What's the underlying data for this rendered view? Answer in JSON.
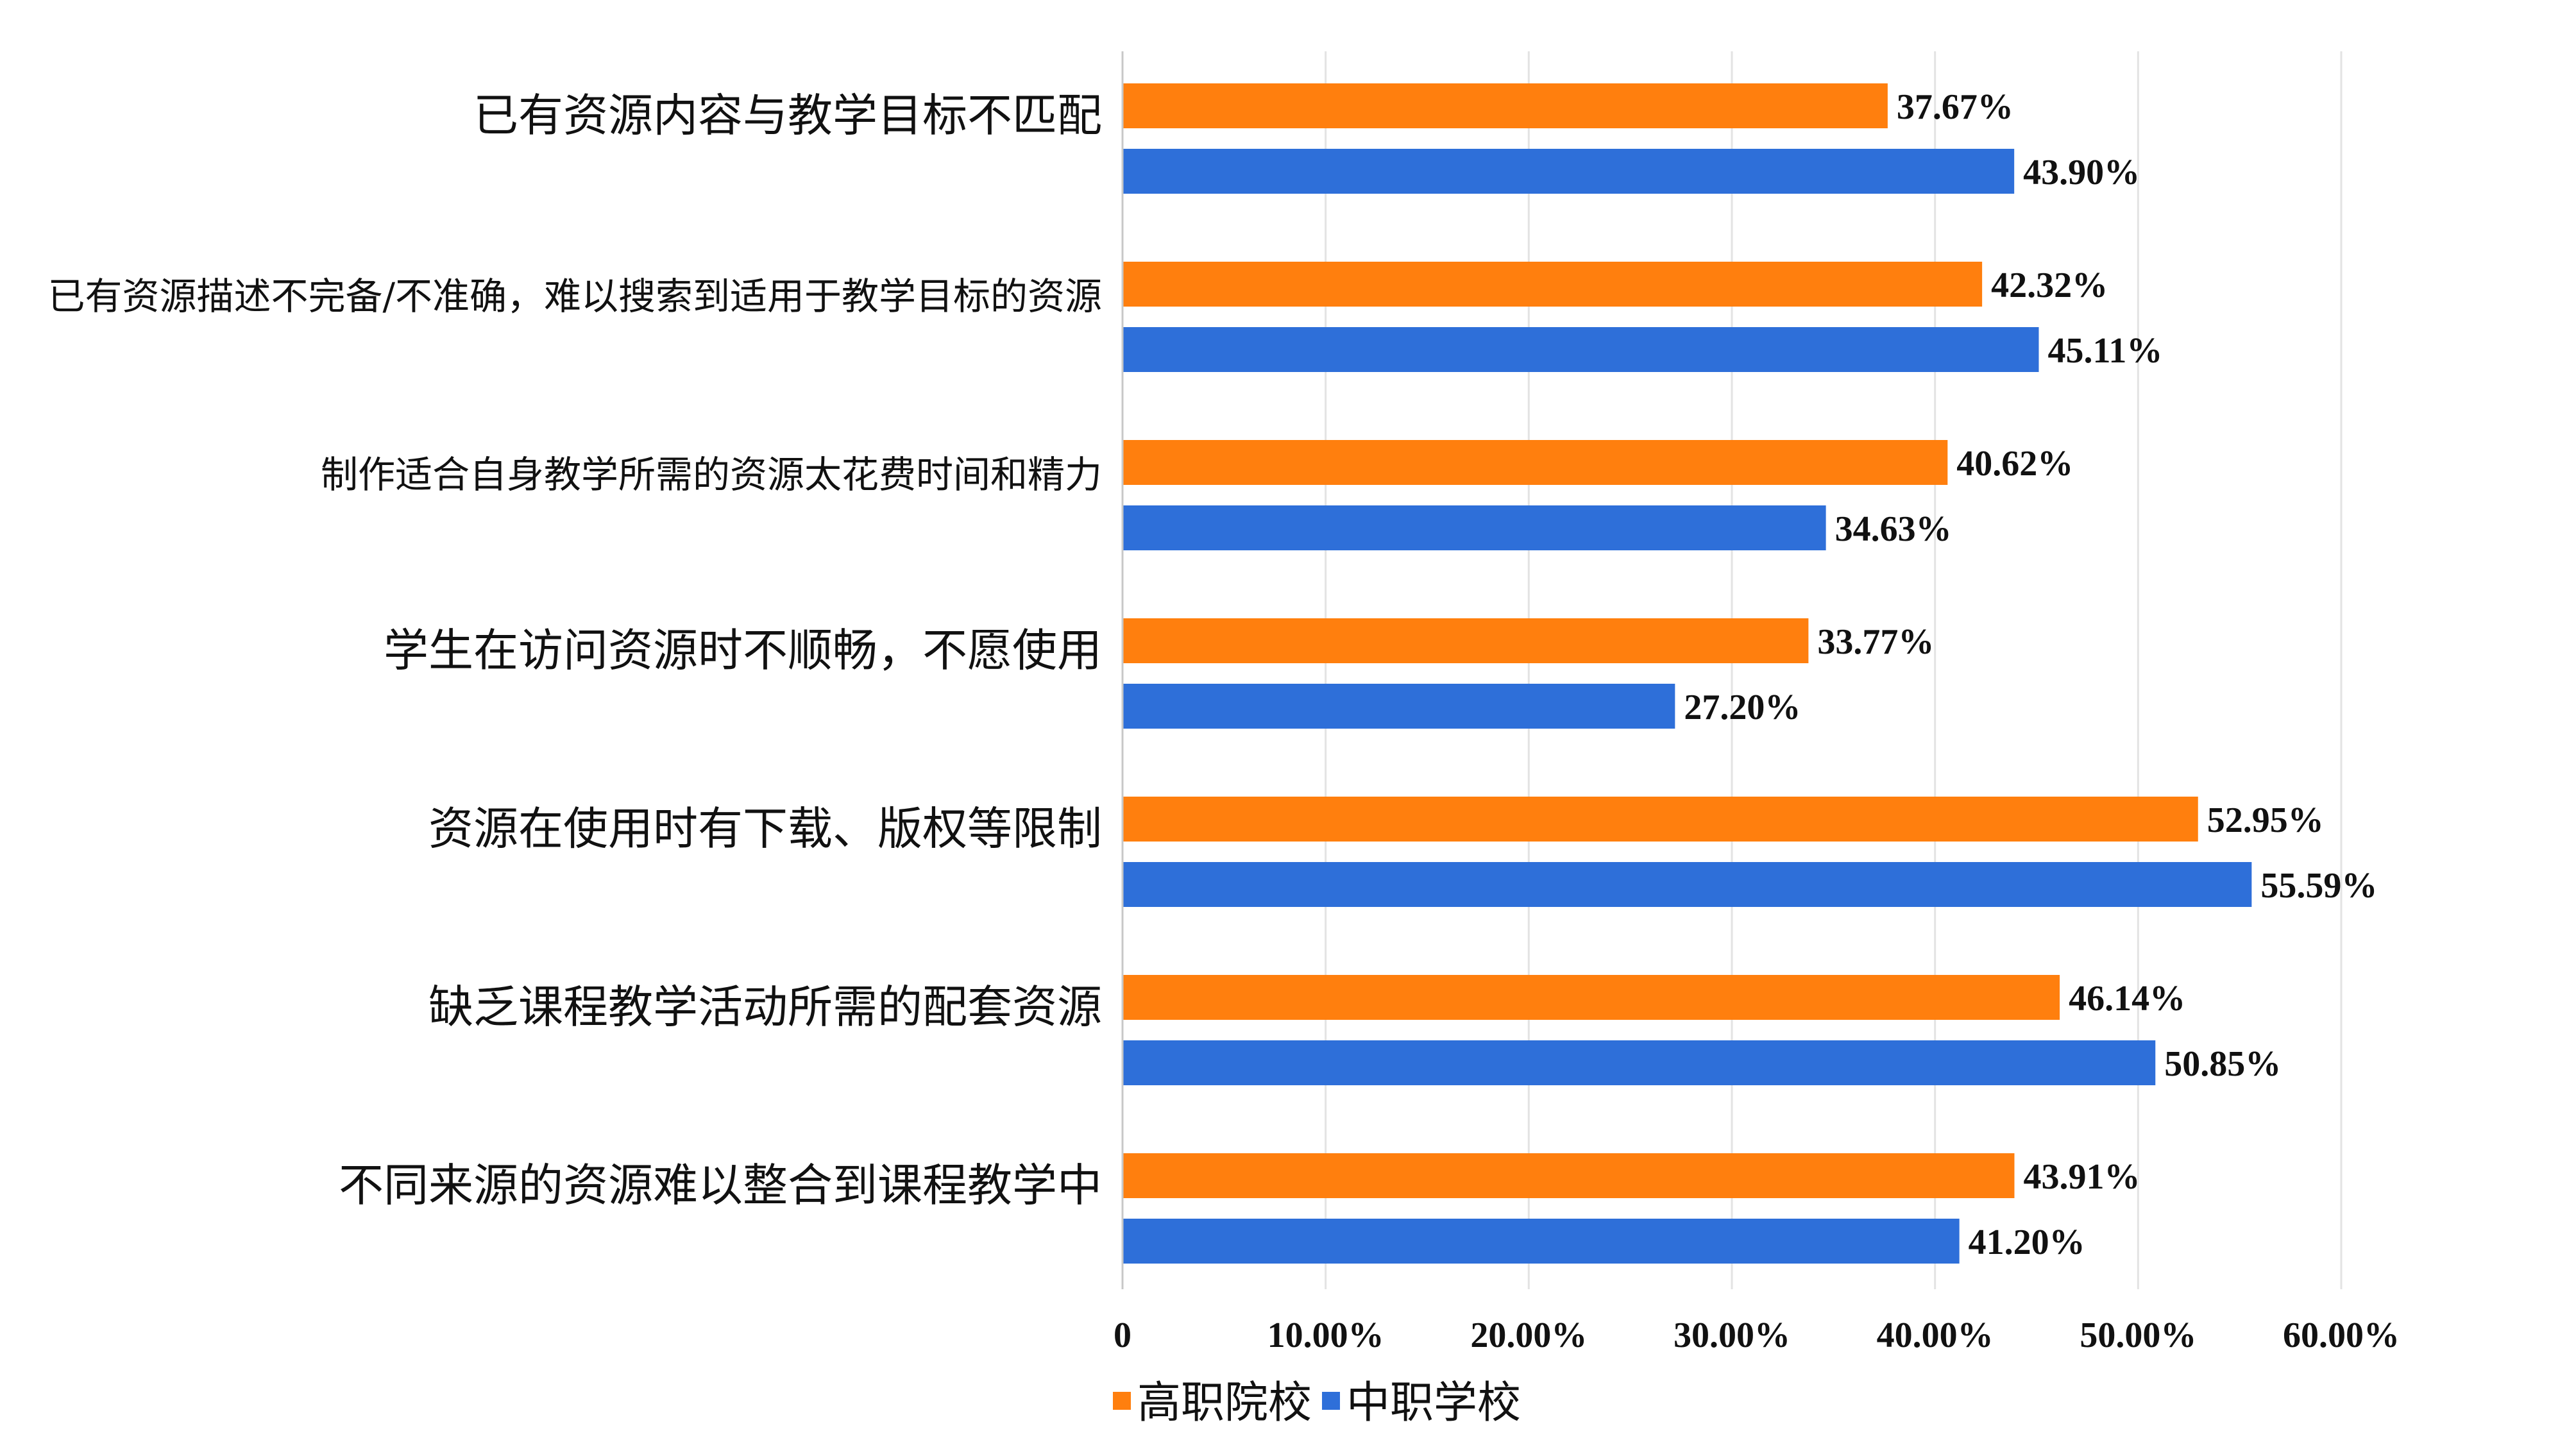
{
  "chart_data": {
    "type": "bar",
    "orientation": "horizontal",
    "categories": [
      "已有资源内容与教学目标不匹配",
      "已有资源描述不完备/不准确，难以搜索到适用于教学目标的资源",
      "制作适合自身教学所需的资源太花费时间和精力",
      "学生在访问资源时不顺畅，不愿使用",
      "资源在使用时有下载、版权等限制",
      "缺乏课程教学活动所需的配套资源",
      "不同来源的资源难以整合到课程教学中"
    ],
    "series": [
      {
        "name": "高职院校",
        "color": "#FF7F0E",
        "values": [
          37.67,
          42.32,
          40.62,
          33.77,
          52.95,
          46.14,
          43.91
        ],
        "labels": [
          "37.67%",
          "42.32%",
          "40.62%",
          "33.77%",
          "52.95%",
          "46.14%",
          "43.91%"
        ]
      },
      {
        "name": "中职学校",
        "color": "#2E6FD9",
        "values": [
          43.9,
          45.11,
          34.63,
          27.2,
          55.59,
          50.85,
          41.2
        ],
        "labels": [
          "43.90%",
          "45.11%",
          "34.63%",
          "27.20%",
          "55.59%",
          "50.85%",
          "41.20%"
        ]
      }
    ],
    "xlim": [
      0,
      60
    ],
    "xticks": [
      0,
      10,
      20,
      30,
      40,
      50,
      60
    ],
    "xtick_labels": [
      "0",
      "10.00%",
      "20.00%",
      "30.00%",
      "40.00%",
      "50.00%",
      "60.00%"
    ],
    "grid": true,
    "legend": {
      "position": "bottom"
    },
    "title": "",
    "xlabel": "",
    "ylabel": ""
  }
}
